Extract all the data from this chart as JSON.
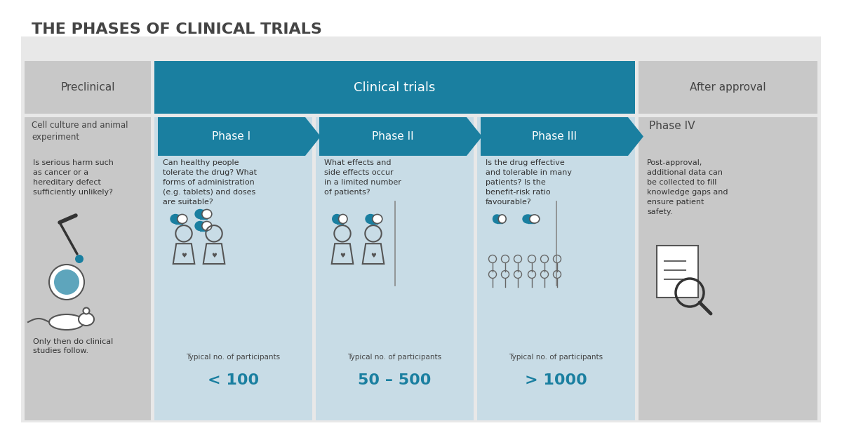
{
  "title": "THE PHASES OF CLINICAL TRIALS",
  "title_color": "#444444",
  "background_color": "#ffffff",
  "outer_bg": "#e8e8e8",
  "teal_color": "#1a7fa0",
  "light_blue_bg": "#c8dce6",
  "light_gray_bg": "#d0d0d0",
  "medium_gray_bg": "#c0c0c0",
  "sections": [
    {
      "header": "Preclinical",
      "header_bg": "#b0b0b0",
      "body_bg": "#d4d4d4",
      "subheader": "Cell culture and animal\nexperiment",
      "description": "Is serious harm such\nas cancer or a\nhereditary defect\nsufficiently unlikely?",
      "footer": "Only then do clinical\nstudies follow.",
      "participants": "",
      "arrow_color": "#b0b0b0"
    },
    {
      "header": "Phase I",
      "header_bg": "#1a7fa0",
      "body_bg": "#c8dce6",
      "subheader": "",
      "description": "Can healthy people\ntolerate the drug? What\nforms of administration\n(e.g. tablets) and doses\nare suitable?",
      "footer": "Typical no. of participants",
      "participants": "< 100",
      "arrow_color": "#1a7fa0"
    },
    {
      "header": "Phase II",
      "header_bg": "#1a7fa0",
      "body_bg": "#c8dce6",
      "subheader": "",
      "description": "What effects and\nside effects occur\nin a limited number\nof patients?",
      "footer": "Typical no. of participants",
      "participants": "50 – 500",
      "arrow_color": "#1a7fa0"
    },
    {
      "header": "Phase III",
      "header_bg": "#1a7fa0",
      "body_bg": "#c8dce6",
      "subheader": "",
      "description": "Is the drug effective\nand tolerable in many\npatients? Is the\nbenefit-risk ratio\nfavourable?",
      "footer": "Typical no. of participants",
      "participants": "> 1000",
      "arrow_color": "#1a7fa0"
    },
    {
      "header": "Phase IV",
      "header_bg": "#b0b0b0",
      "body_bg": "#d4d4d4",
      "subheader": "",
      "description": "Post-approval,\nadditional data can\nbe collected to fill\nknowledge gaps and\nensure patient\nsafety.",
      "footer": "",
      "participants": "",
      "arrow_color": "#b0b0b0"
    }
  ],
  "clinical_trials_banner": "Clinical trials",
  "preclinical_label": "Preclinical",
  "after_approval_label": "After approval"
}
